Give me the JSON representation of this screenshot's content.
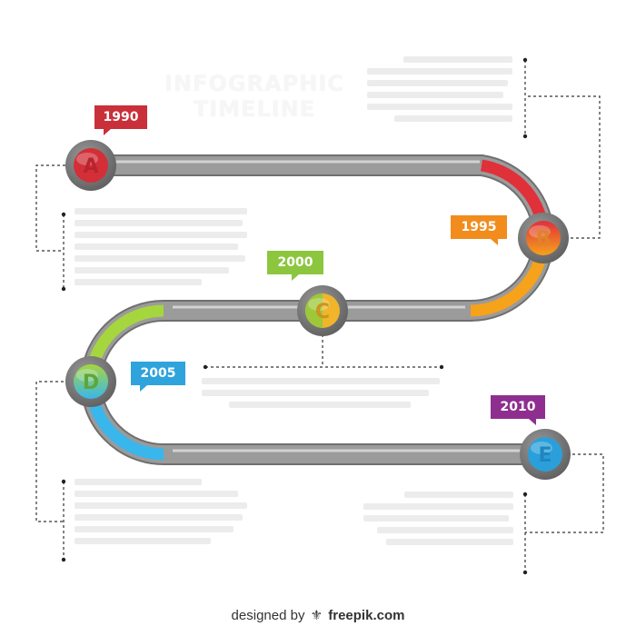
{
  "title": {
    "line1": "INFOGRAPHIC",
    "line2": "TIMELINE"
  },
  "milestones": [
    {
      "year": "1990",
      "letter": "A",
      "color": "#c9303a"
    },
    {
      "year": "1995",
      "letter": "B",
      "color": "#f28c1d"
    },
    {
      "year": "2000",
      "letter": "C",
      "color": "#8cc63f"
    },
    {
      "year": "2005",
      "letter": "D",
      "color": "#2ea3dc"
    },
    {
      "year": "2010",
      "letter": "E",
      "color": "#8e2f8f"
    }
  ],
  "colors": {
    "red": "#e23b45",
    "orange": "#f6a21b",
    "yellow": "#f4d03f",
    "green": "#a5d64a",
    "blue": "#3fb4ea",
    "rail": "#7a7a7a"
  },
  "footer": {
    "prefix": "designed by",
    "logo_icon": "freepik-logo-icon",
    "brand": "freepik.com"
  }
}
